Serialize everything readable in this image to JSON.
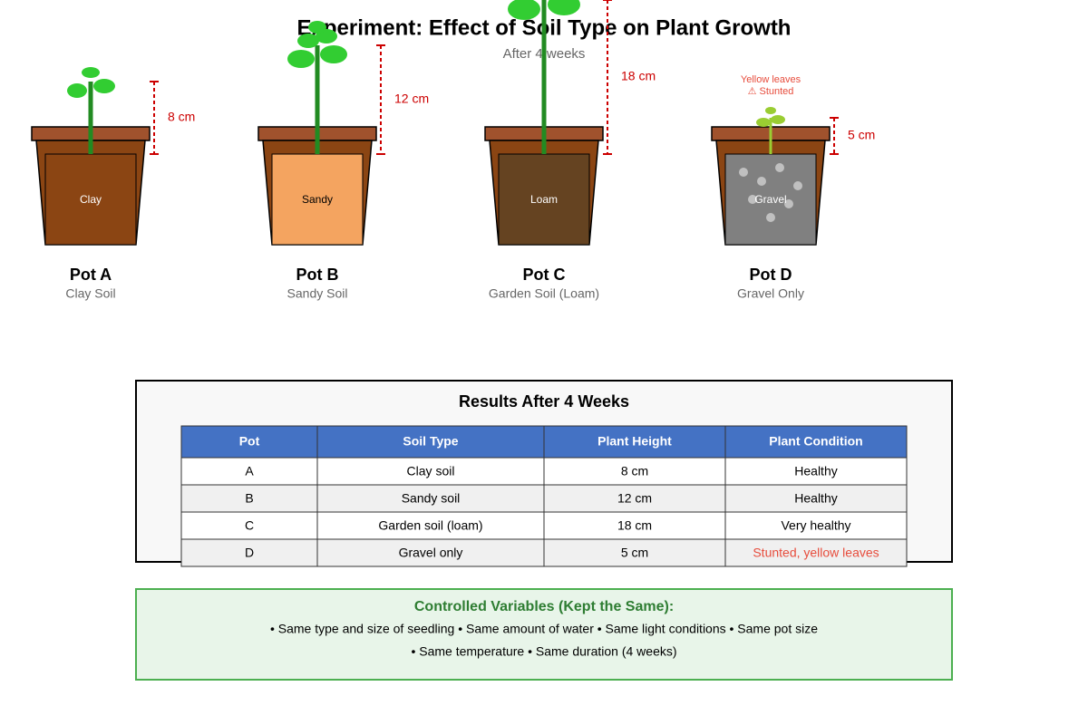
{
  "title": "Experiment: Effect of Soil Type on Plant Growth",
  "subtitle": "After 4 weeks",
  "pots": [
    {
      "name": "Pot A",
      "soil": "Clay Soil",
      "soil_label": "Clay",
      "height": "8 cm"
    },
    {
      "name": "Pot B",
      "soil": "Sandy Soil",
      "soil_label": "Sandy",
      "height": "12 cm"
    },
    {
      "name": "Pot C",
      "soil": "Garden Soil (Loam)",
      "soil_label": "Loam",
      "height": "18 cm"
    },
    {
      "name": "Pot D",
      "soil": "Gravel Only",
      "soil_label": "Gravel",
      "height": "5 cm",
      "notes": [
        "Yellow leaves",
        "⚠ Stunted"
      ]
    }
  ],
  "results": {
    "title": "Results After 4 Weeks",
    "columns": [
      "Pot",
      "Soil Type",
      "Plant Height",
      "Plant Condition"
    ],
    "rows": [
      [
        "A",
        "Clay soil",
        "8 cm",
        "Healthy"
      ],
      [
        "B",
        "Sandy soil",
        "12 cm",
        "Healthy"
      ],
      [
        "C",
        "Garden soil (loam)",
        "18 cm",
        "Very healthy"
      ],
      [
        "D",
        "Gravel only",
        "5 cm",
        "Stunted, yellow leaves"
      ]
    ]
  },
  "controls": {
    "title": "Controlled Variables (Kept the Same):",
    "lines": [
      "• Same type and size of seedling • Same amount of water • Same light conditions • Same pot size",
      "• Same temperature • Same duration (4 weeks)"
    ]
  }
}
